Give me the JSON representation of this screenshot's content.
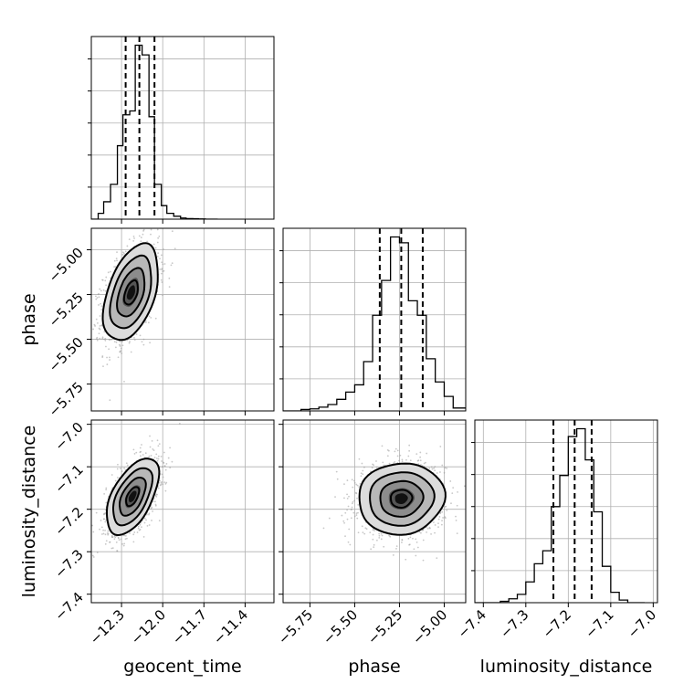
{
  "chart_data": {
    "type": "corner",
    "parameters": [
      "geocent_time",
      "phase",
      "luminosity_distance"
    ],
    "axis_labels": {
      "x": [
        "geocent_time",
        "phase",
        "luminosity_distance"
      ],
      "y": [
        "",
        "phase",
        "luminosity_distance"
      ]
    },
    "ranges": {
      "geocent_time": [
        -12.52,
        -11.19
      ],
      "phase": [
        -5.9,
        -4.88
      ],
      "luminosity_distance": [
        -7.42,
        -6.99
      ]
    },
    "ticks": {
      "geocent_time": [
        -12.3,
        -12.0,
        -11.7,
        -11.4
      ],
      "phase": [
        -5.75,
        -5.5,
        -5.25,
        -5.0
      ],
      "luminosity_distance": [
        -7.4,
        -7.3,
        -7.2,
        -7.1,
        -7.0
      ]
    },
    "tick_labels": {
      "geocent_time": [
        "−12.3",
        "−12.0",
        "−11.7",
        "−11.4"
      ],
      "phase": [
        "−5.75",
        "−5.50",
        "−5.25",
        "−5.00"
      ],
      "luminosity_distance": [
        "−7.4",
        "−7.3",
        "−7.2",
        "−7.1",
        "−7.0"
      ]
    },
    "grid": true,
    "quantile_lines": {
      "geocent_time": [
        -12.27,
        -12.17,
        -12.06
      ],
      "phase": [
        -5.36,
        -5.24,
        -5.12
      ],
      "luminosity_distance": [
        -7.235,
        -7.185,
        -7.145
      ]
    },
    "histograms": {
      "geocent_time": {
        "edges": [
          -12.52,
          -12.47,
          -12.43,
          -12.38,
          -12.33,
          -12.29,
          -12.24,
          -12.2,
          -12.15,
          -12.1,
          -12.06,
          -12.01,
          -11.97,
          -11.92,
          -11.87,
          -11.83,
          -11.78,
          -11.74,
          -11.69,
          -11.64,
          -11.6
        ],
        "counts": [
          0,
          3,
          9,
          18,
          38,
          54,
          56,
          90,
          85,
          53,
          18,
          7,
          3,
          1.5,
          0.6,
          0.3,
          0.2,
          0.1,
          0,
          0
        ]
      },
      "phase": {
        "edges": [
          -5.9,
          -5.85,
          -5.8,
          -5.75,
          -5.7,
          -5.65,
          -5.6,
          -5.55,
          -5.5,
          -5.45,
          -5.4,
          -5.35,
          -5.3,
          -5.25,
          -5.2,
          -5.15,
          -5.1,
          -5.05,
          -5.0,
          -4.95,
          -4.88
        ],
        "counts": [
          0,
          0,
          0.5,
          0.7,
          1.3,
          2.2,
          4,
          6.5,
          9,
          17,
          33,
          45,
          60,
          58,
          38,
          33,
          18,
          10,
          5,
          1
        ]
      },
      "luminosity_distance": {
        "edges": [
          -7.42,
          -7.4,
          -7.38,
          -7.36,
          -7.34,
          -7.32,
          -7.3,
          -7.28,
          -7.26,
          -7.24,
          -7.22,
          -7.2,
          -7.18,
          -7.16,
          -7.14,
          -7.12,
          -7.1,
          -7.08,
          -7.06,
          -7.04,
          -7.02
        ],
        "counts": [
          0,
          0,
          0,
          0.5,
          1.5,
          3.2,
          8,
          15,
          20,
          37,
          49,
          64,
          67,
          55,
          35,
          14,
          4,
          1,
          0,
          0
        ]
      }
    },
    "posteriors_2d": [
      {
        "x": "geocent_time",
        "y": "phase",
        "center": [
          -12.23,
          -5.24
        ],
        "sigma": [
          0.1,
          0.135
        ],
        "rho": 0.45
      },
      {
        "x": "geocent_time",
        "y": "luminosity_distance",
        "center": [
          -12.22,
          -7.17
        ],
        "sigma": [
          0.095,
          0.045
        ],
        "rho": 0.55
      },
      {
        "x": "phase",
        "y": "luminosity_distance",
        "center": [
          -5.24,
          -7.175
        ],
        "sigma": [
          0.12,
          0.042
        ],
        "rho": 0.05
      }
    ],
    "contour_levels_sigma": [
      0.5,
      1.0,
      1.5,
      2.0
    ]
  }
}
